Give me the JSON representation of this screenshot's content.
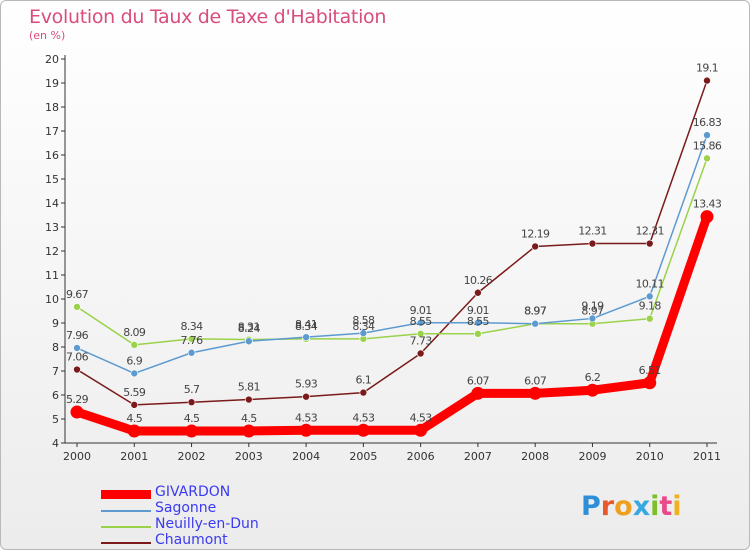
{
  "title": "Evolution du Taux de Taxe d'Habitation",
  "unit_label": "(en %)",
  "logo": {
    "letters": [
      {
        "ch": "P",
        "color": "#2e8ed8"
      },
      {
        "ch": "r",
        "color": "#e8582a"
      },
      {
        "ch": "o",
        "color": "#f0a020"
      },
      {
        "ch": "x",
        "color": "#3aa8e0"
      },
      {
        "ch": "i",
        "color": "#7cbf2a"
      },
      {
        "ch": "t",
        "color": "#e94a8a"
      },
      {
        "ch": "i",
        "color": "#f0b020"
      }
    ]
  },
  "chart_data": {
    "type": "line",
    "title": "Evolution du Taux de Taxe d'Habitation",
    "ylabel": "(en %)",
    "xlabel": "",
    "ylim": [
      4,
      20
    ],
    "yticks": [
      "4",
      "5",
      "6",
      "7",
      "8",
      "9",
      "10",
      "11",
      "12",
      "13",
      "14",
      "15",
      "16",
      "17",
      "18",
      "19",
      "20"
    ],
    "x": [
      "2000",
      "2001",
      "2002",
      "2003",
      "2004",
      "2005",
      "2006",
      "2007",
      "2008",
      "2009",
      "2010",
      "2011"
    ],
    "series": [
      {
        "name": "GIVARDON",
        "color": "#ff0000",
        "values": [
          5.29,
          4.5,
          4.5,
          4.5,
          4.53,
          4.53,
          4.53,
          6.07,
          6.07,
          6.2,
          6.51,
          13.43
        ],
        "labels": [
          "5.29",
          "4.5",
          "4.5",
          "4.5",
          "4.53",
          "4.53",
          "4.53",
          "6.07",
          "6.07",
          "6.2",
          "6.51",
          "13.43"
        ]
      },
      {
        "name": "Sagonne",
        "color": "#5c9ad0",
        "values": [
          7.96,
          6.9,
          7.76,
          8.24,
          8.41,
          8.58,
          9.01,
          9.01,
          8.97,
          9.19,
          10.11,
          16.83
        ],
        "labels": [
          "7.96",
          "6.9",
          "7.76",
          "8.24",
          "8.41",
          "8.58",
          "9.01",
          "9.01",
          "8.97",
          "9.19",
          "10.11",
          "16.83"
        ]
      },
      {
        "name": "Neuilly-en-Dun",
        "color": "#9ad24a",
        "values": [
          9.67,
          8.09,
          8.34,
          8.31,
          8.34,
          8.34,
          8.55,
          8.55,
          8.97,
          8.97,
          9.18,
          15.86
        ],
        "labels": [
          "9.67",
          "8.09",
          "8.34",
          "8.31",
          "8.34",
          "8.34",
          "8.55",
          "8.55",
          "8.97",
          "8.97",
          "9.18",
          "15.86"
        ]
      },
      {
        "name": "Chaumont",
        "color": "#7a1a1a",
        "values": [
          7.06,
          5.59,
          5.7,
          5.81,
          5.93,
          6.1,
          7.73,
          10.26,
          12.19,
          12.31,
          12.31,
          19.1
        ],
        "labels": [
          "7.06",
          "5.59",
          "5.7",
          "5.81",
          "5.93",
          "6.1",
          "7.73",
          "10.26",
          "12.19",
          "12.31",
          "12.31",
          "19.1"
        ]
      }
    ],
    "grid": false,
    "legend_position": "bottom-left"
  }
}
